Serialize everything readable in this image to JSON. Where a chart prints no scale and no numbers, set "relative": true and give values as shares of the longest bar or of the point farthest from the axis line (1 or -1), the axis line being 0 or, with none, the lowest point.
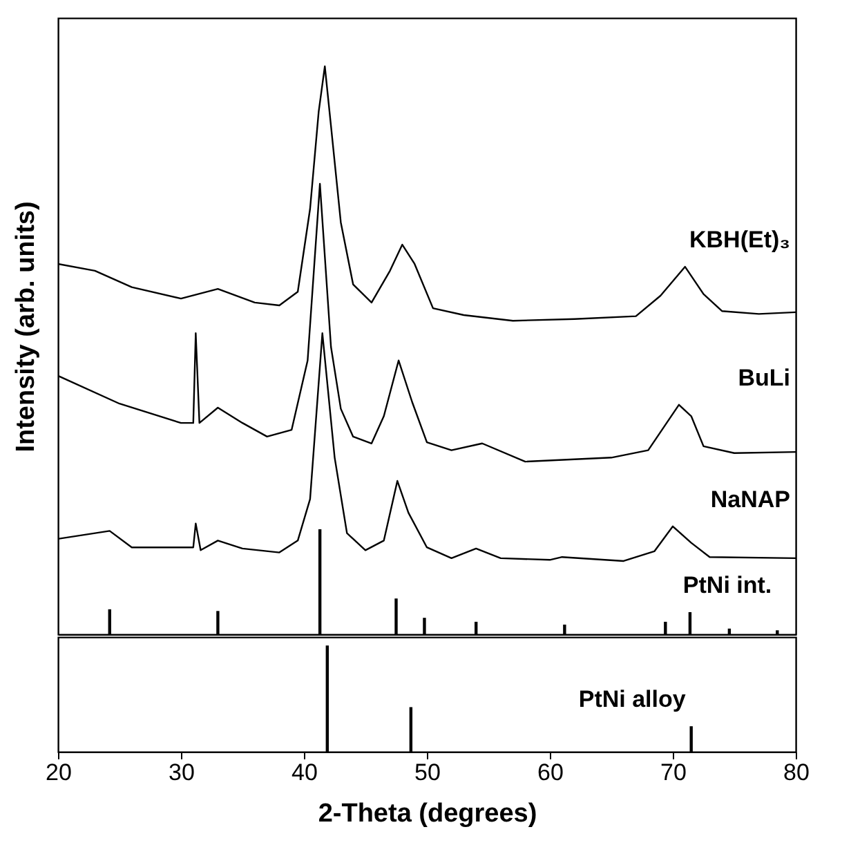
{
  "chart_data": [
    {
      "type": "line",
      "ylabel": "Intensity (arb. units)",
      "relative": true,
      "xlim": [
        20,
        80
      ],
      "tick_labels": false,
      "marker": "none",
      "line_style": "solid",
      "series": [
        {
          "name": "KBH(Et)₃",
          "color": "#000000",
          "x": [
            20,
            23,
            26,
            30,
            33,
            36,
            38,
            39.5,
            40.5,
            41.2,
            41.7,
            42.2,
            43,
            44,
            45.5,
            47,
            48,
            49,
            50.5,
            53,
            57,
            62,
            67,
            69,
            71,
            72.5,
            74,
            77,
            80
          ],
          "values": [
            0.652,
            0.64,
            0.611,
            0.591,
            0.608,
            0.584,
            0.579,
            0.603,
            0.749,
            0.92,
            1,
            0.895,
            0.725,
            0.616,
            0.584,
            0.64,
            0.686,
            0.652,
            0.574,
            0.562,
            0.552,
            0.555,
            0.56,
            0.596,
            0.647,
            0.599,
            0.569,
            0.564,
            0.567
          ]
        },
        {
          "name": "BuLi",
          "color": "#000000",
          "x": [
            20,
            25,
            30,
            31,
            31.2,
            31.5,
            33,
            35,
            37,
            39,
            40.3,
            41.3,
            42.2,
            43,
            44,
            45.5,
            46.5,
            47.7,
            48.8,
            50,
            52,
            54.5,
            58,
            65,
            68,
            69.5,
            70.5,
            71.5,
            72.5,
            75,
            80
          ],
          "values": [
            0.455,
            0.406,
            0.372,
            0.372,
            0.53,
            0.372,
            0.399,
            0.372,
            0.348,
            0.36,
            0.482,
            0.793,
            0.506,
            0.397,
            0.348,
            0.336,
            0.384,
            0.482,
            0.409,
            0.338,
            0.324,
            0.336,
            0.304,
            0.311,
            0.324,
            0.372,
            0.404,
            0.384,
            0.331,
            0.319,
            0.321
          ]
        },
        {
          "name": "NaNAP",
          "color": "#000000",
          "x": [
            20,
            24.2,
            26,
            28,
            31,
            31.2,
            31.6,
            33,
            35,
            38,
            39.5,
            40.5,
            41.5,
            42.5,
            43.5,
            45,
            46.5,
            47.6,
            48.5,
            50,
            52,
            54,
            56,
            60,
            61,
            66,
            68.5,
            70,
            71.5,
            73,
            80
          ],
          "values": [
            0.168,
            0.182,
            0.153,
            0.153,
            0.153,
            0.195,
            0.148,
            0.165,
            0.151,
            0.144,
            0.165,
            0.238,
            0.53,
            0.311,
            0.178,
            0.148,
            0.165,
            0.27,
            0.214,
            0.153,
            0.134,
            0.151,
            0.134,
            0.131,
            0.136,
            0.129,
            0.146,
            0.19,
            0.161,
            0.136,
            0.134
          ]
        },
        {
          "name": "PtNi int.",
          "type": "bar",
          "color": "#000000",
          "x": [
            24.2,
            33,
            41.3,
            47.5,
            49.8,
            54,
            61.2,
            69.4,
            71.4,
            74.6,
            78.5
          ],
          "values": [
            0.044,
            0.041,
            0.185,
            0.063,
            0.029,
            0.022,
            0.017,
            0.022,
            0.039,
            0.01,
            0.007
          ]
        }
      ]
    },
    {
      "type": "bar",
      "xlabel": "2-Theta (degrees)",
      "relative": true,
      "xlim": [
        20,
        80
      ],
      "xticks": [
        20,
        30,
        40,
        50,
        60,
        70,
        80
      ],
      "tick_labels": "x",
      "series": [
        {
          "name": "PtNi alloy",
          "color": "#000000",
          "x": [
            41.9,
            48.7,
            71.5
          ],
          "values": [
            1,
            0.42,
            0.24
          ]
        }
      ]
    }
  ]
}
